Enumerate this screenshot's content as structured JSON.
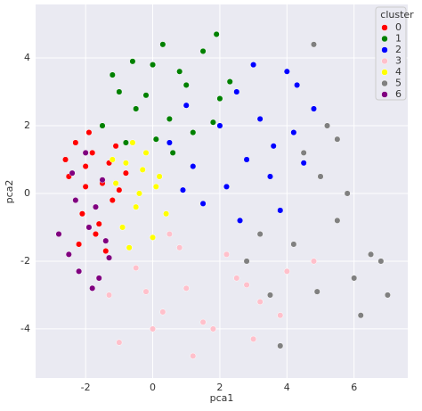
{
  "chart_data": {
    "type": "scatter",
    "xlabel": "pca1",
    "ylabel": "pca2",
    "legend_title": "cluster",
    "legend": "upper right",
    "grid": true,
    "xlim": [
      -3.49,
      7.6
    ],
    "ylim": [
      -5.45,
      5.58
    ],
    "xticks": [
      -2,
      0,
      2,
      4,
      6
    ],
    "yticks": [
      -4,
      -2,
      0,
      2,
      4
    ],
    "series": [
      {
        "name": "0",
        "color": "#ff0000",
        "x": [
          -2.3,
          -2.0,
          -1.8,
          -1.5,
          -1.2,
          -2.5,
          -2.1,
          -1.7,
          -1.3,
          -1.0,
          -2.2,
          -1.9,
          -1.6,
          -0.8,
          -2.6,
          -1.4,
          -2.0,
          -1.1
        ],
        "y": [
          1.5,
          0.8,
          1.2,
          0.3,
          -0.2,
          0.5,
          -0.6,
          -1.2,
          0.9,
          0.1,
          -1.5,
          1.8,
          -0.9,
          0.6,
          1.0,
          -1.7,
          0.2,
          1.4
        ]
      },
      {
        "name": "1",
        "color": "#008000",
        "x": [
          -1.5,
          -1.0,
          -0.5,
          0.0,
          0.5,
          1.0,
          1.5,
          2.0,
          -0.8,
          0.3,
          1.2,
          -0.2,
          0.8,
          1.9,
          -1.2,
          0.1,
          2.3,
          1.8,
          -0.6,
          0.6
        ],
        "y": [
          2.0,
          3.0,
          2.5,
          3.8,
          2.2,
          3.2,
          4.2,
          2.8,
          1.5,
          4.4,
          1.8,
          2.9,
          3.6,
          4.7,
          3.5,
          1.6,
          3.3,
          2.1,
          3.9,
          1.2
        ]
      },
      {
        "name": "2",
        "color": "#0000ff",
        "x": [
          0.5,
          1.2,
          2.0,
          2.8,
          3.5,
          4.2,
          4.8,
          1.5,
          2.5,
          3.2,
          4.0,
          3.8,
          2.2,
          1.0,
          4.5,
          3.0,
          2.6,
          0.9,
          3.6,
          4.3
        ],
        "y": [
          1.5,
          0.8,
          2.0,
          1.0,
          0.5,
          1.8,
          2.5,
          -0.3,
          3.0,
          2.2,
          3.6,
          -0.5,
          0.2,
          2.6,
          0.9,
          3.8,
          -0.8,
          0.1,
          1.4,
          3.2
        ]
      },
      {
        "name": "3",
        "color": "#ffc0cb",
        "x": [
          -1.3,
          -0.5,
          0.3,
          1.0,
          1.8,
          2.5,
          3.2,
          4.0,
          4.8,
          -1.0,
          0.0,
          0.8,
          1.5,
          2.2,
          3.0,
          3.8,
          -0.2,
          1.2,
          2.8,
          0.5
        ],
        "y": [
          -3.0,
          -2.2,
          -3.5,
          -2.8,
          -4.0,
          -2.5,
          -3.2,
          -2.3,
          -2.0,
          -4.4,
          -4.0,
          -1.6,
          -3.8,
          -1.8,
          -4.3,
          -3.6,
          -2.9,
          -4.8,
          -2.7,
          -1.2
        ]
      },
      {
        "name": "4",
        "color": "#ffff00",
        "x": [
          -1.1,
          -0.8,
          -0.5,
          -0.2,
          0.2,
          -0.9,
          -0.4,
          0.0,
          -1.2,
          -0.6,
          0.4,
          -0.3,
          -0.7,
          0.1
        ],
        "y": [
          0.3,
          0.9,
          -0.4,
          1.2,
          0.5,
          -1.0,
          0.0,
          -1.3,
          1.0,
          1.5,
          -0.6,
          0.7,
          -1.6,
          0.2
        ]
      },
      {
        "name": "5",
        "color": "#808080",
        "x": [
          2.8,
          3.5,
          4.2,
          5.0,
          5.5,
          6.0,
          6.5,
          7.0,
          4.8,
          5.2,
          3.8,
          4.5,
          5.8,
          6.2,
          3.2,
          4.9,
          5.5,
          6.8
        ],
        "y": [
          -2.0,
          -3.0,
          -1.5,
          0.5,
          -0.8,
          -2.5,
          -1.8,
          -3.0,
          4.4,
          2.0,
          -4.5,
          1.2,
          0.0,
          -3.6,
          -1.2,
          -2.9,
          1.6,
          -2.0
        ]
      },
      {
        "name": "6",
        "color": "#800080",
        "x": [
          -2.5,
          -2.2,
          -1.9,
          -1.6,
          -1.3,
          -2.4,
          -2.0,
          -1.7,
          -1.4,
          -2.8,
          -1.8,
          -2.3,
          -1.5
        ],
        "y": [
          -1.8,
          -2.3,
          -1.0,
          -2.5,
          -1.9,
          0.6,
          1.2,
          -0.4,
          -1.4,
          -1.2,
          -2.8,
          -0.2,
          0.4
        ]
      }
    ]
  }
}
